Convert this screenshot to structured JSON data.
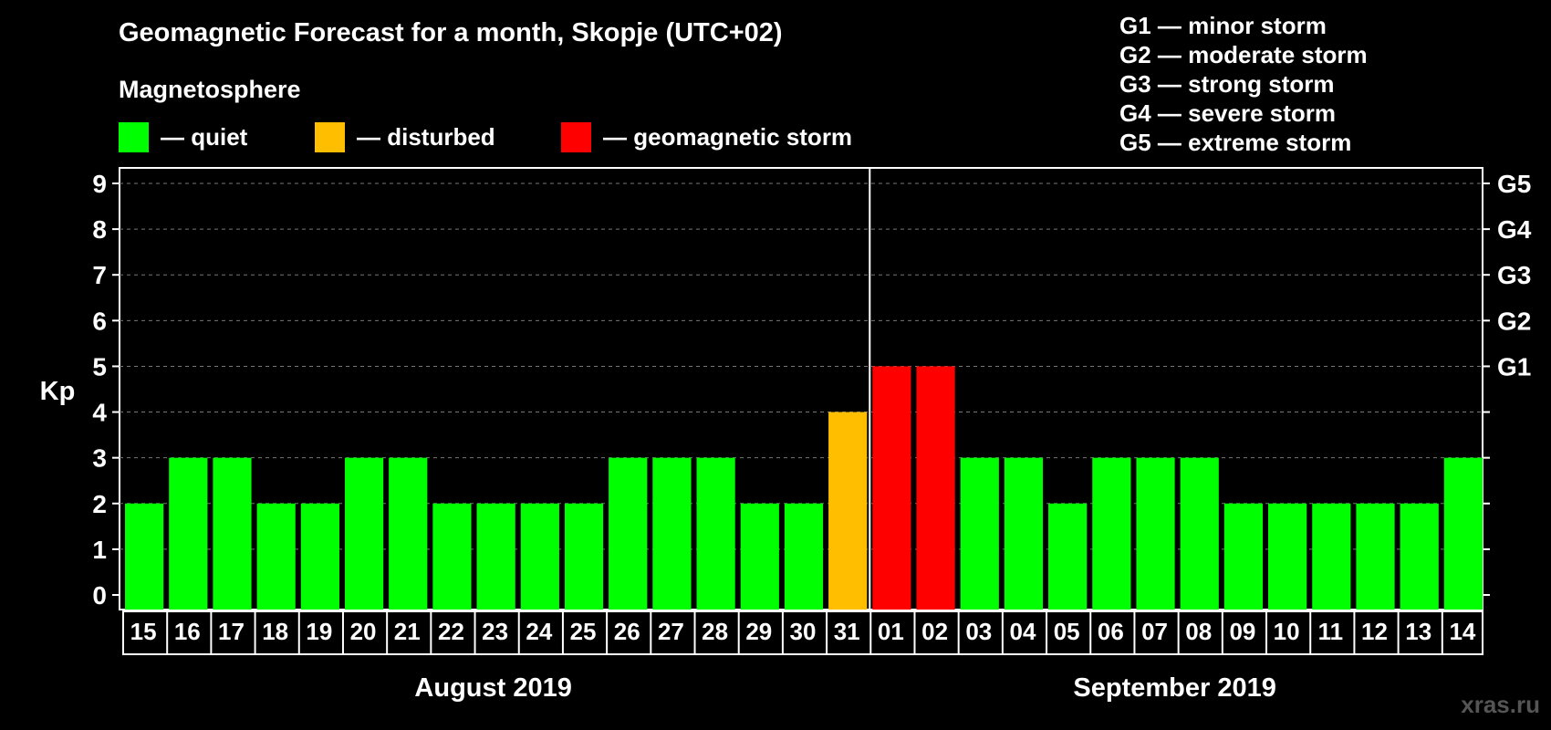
{
  "chart_data": {
    "type": "bar",
    "title": "Geomagnetic Forecast for a month, Skopje (UTC+02)",
    "subtitle": "Magnetosphere",
    "ylabel": "Kp",
    "ylim": [
      0,
      9
    ],
    "yticks": [
      "0",
      "1",
      "2",
      "3",
      "4",
      "5",
      "6",
      "7",
      "8",
      "9"
    ],
    "right_ticks": [
      {
        "kp": 5,
        "label": "G1"
      },
      {
        "kp": 6,
        "label": "G2"
      },
      {
        "kp": 7,
        "label": "G3"
      },
      {
        "kp": 8,
        "label": "G4"
      },
      {
        "kp": 9,
        "label": "G5"
      }
    ],
    "categories": [
      "15",
      "16",
      "17",
      "18",
      "19",
      "20",
      "21",
      "22",
      "23",
      "24",
      "25",
      "26",
      "27",
      "28",
      "29",
      "30",
      "31",
      "01",
      "02",
      "03",
      "04",
      "05",
      "06",
      "07",
      "08",
      "09",
      "10",
      "11",
      "12",
      "13",
      "14"
    ],
    "values": [
      2,
      3,
      3,
      2,
      2,
      3,
      3,
      2,
      2,
      2,
      2,
      3,
      3,
      3,
      2,
      2,
      4,
      5,
      5,
      3,
      3,
      2,
      3,
      3,
      3,
      2,
      2,
      2,
      2,
      2,
      3
    ],
    "months": [
      {
        "label": "August 2019",
        "first_index": 0,
        "last_index": 16
      },
      {
        "label": "September 2019",
        "first_index": 17,
        "last_index": 30
      }
    ],
    "legend": [
      {
        "label": "— quiet",
        "color": "#00ff00"
      },
      {
        "label": "— disturbed",
        "color": "#ffbf00"
      },
      {
        "label": "— geomagnetic storm",
        "color": "#ff0000"
      }
    ],
    "storm_scale": [
      "G1 — minor storm",
      "G2 — moderate storm",
      "G3 — strong storm",
      "G4 — severe storm",
      "G5 — extreme storm"
    ],
    "colors": {
      "quiet": "#00ff00",
      "disturbed": "#ffbf00",
      "storm": "#ff0000",
      "grid": "#777777"
    }
  },
  "watermark": "xras.ru"
}
